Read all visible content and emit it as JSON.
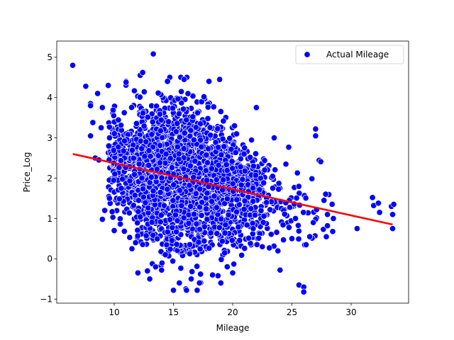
{
  "chart_data": {
    "type": "scatter",
    "title": "",
    "xlabel": "Mileage",
    "ylabel": "Price_Log",
    "xlim": [
      5.15,
      34.85
    ],
    "ylim": [
      -1.1,
      5.4
    ],
    "xticks": [
      10,
      15,
      20,
      25,
      30
    ],
    "yticks": [
      -1,
      0,
      1,
      2,
      3,
      4,
      5
    ],
    "grid": false,
    "legend": {
      "placement": "top-right",
      "entries": [
        "Actual Mileage"
      ]
    },
    "colors": {
      "points": "#0000ff",
      "point_edge": "#ffffff",
      "trend": "#ff0000"
    },
    "trend_line": {
      "x": [
        6.5,
        33.5
      ],
      "y": [
        2.6,
        0.85
      ]
    },
    "series": [
      {
        "name": "Actual Mileage",
        "cluster": {
          "count": 2600,
          "x_range": [
            9.5,
            28.5
          ],
          "y_range": [
            -0.8,
            4.5
          ],
          "model": "randomized dense cloud about the trend line"
        },
        "points": [
          [
            6.5,
            4.8
          ],
          [
            7.6,
            4.28
          ],
          [
            8.0,
            3.85
          ],
          [
            8.0,
            3.8
          ],
          [
            8.0,
            3.05
          ],
          [
            8.2,
            3.38
          ],
          [
            8.4,
            2.5
          ],
          [
            8.6,
            4.1
          ],
          [
            8.7,
            2.45
          ],
          [
            8.9,
            3.25
          ],
          [
            9.0,
            3.75
          ],
          [
            9.0,
            0.98
          ],
          [
            9.2,
            1.2
          ],
          [
            9.5,
            4.3
          ],
          [
            9.6,
            1.5
          ],
          [
            10.0,
            0.7
          ],
          [
            11.0,
            4.4
          ],
          [
            11.0,
            4.38
          ],
          [
            11.5,
            0.25
          ],
          [
            11.8,
            0.4
          ],
          [
            12.0,
            -0.35
          ],
          [
            12.2,
            4.55
          ],
          [
            12.4,
            4.62
          ],
          [
            12.8,
            -0.3
          ],
          [
            13.0,
            -0.5
          ],
          [
            13.3,
            5.08
          ],
          [
            13.5,
            -0.2
          ],
          [
            14.0,
            -0.28
          ],
          [
            14.5,
            4.4
          ],
          [
            15.0,
            -0.78
          ],
          [
            15.5,
            -0.6
          ],
          [
            15.9,
            4.45
          ],
          [
            16.1,
            -0.78
          ],
          [
            16.5,
            -0.5
          ],
          [
            17.0,
            -0.78
          ],
          [
            17.2,
            -0.6
          ],
          [
            18.0,
            4.4
          ],
          [
            18.3,
            -0.4
          ],
          [
            18.9,
            4.45
          ],
          [
            19.0,
            -0.6
          ],
          [
            20.0,
            -0.35
          ],
          [
            21.0,
            0.26
          ],
          [
            22.0,
            3.75
          ],
          [
            22.5,
            0.3
          ],
          [
            23.5,
            3.0
          ],
          [
            24.0,
            -0.28
          ],
          [
            25.0,
            0.5
          ],
          [
            25.6,
            -0.65
          ],
          [
            26.0,
            -0.7
          ],
          [
            26.0,
            -0.82
          ],
          [
            26.2,
            0.35
          ],
          [
            26.5,
            0.55
          ],
          [
            26.8,
            0.9
          ],
          [
            27.0,
            3.22
          ],
          [
            27.0,
            3.05
          ],
          [
            28.0,
            1.1
          ],
          [
            28.0,
            0.82
          ],
          [
            28.5,
            1.0
          ],
          [
            30.5,
            0.75
          ],
          [
            31.8,
            1.52
          ],
          [
            31.9,
            1.32
          ],
          [
            32.3,
            1.38
          ],
          [
            32.4,
            1.15
          ],
          [
            33.4,
            1.3
          ],
          [
            33.5,
            1.1
          ],
          [
            33.5,
            0.75
          ],
          [
            33.6,
            1.35
          ]
        ]
      }
    ]
  }
}
